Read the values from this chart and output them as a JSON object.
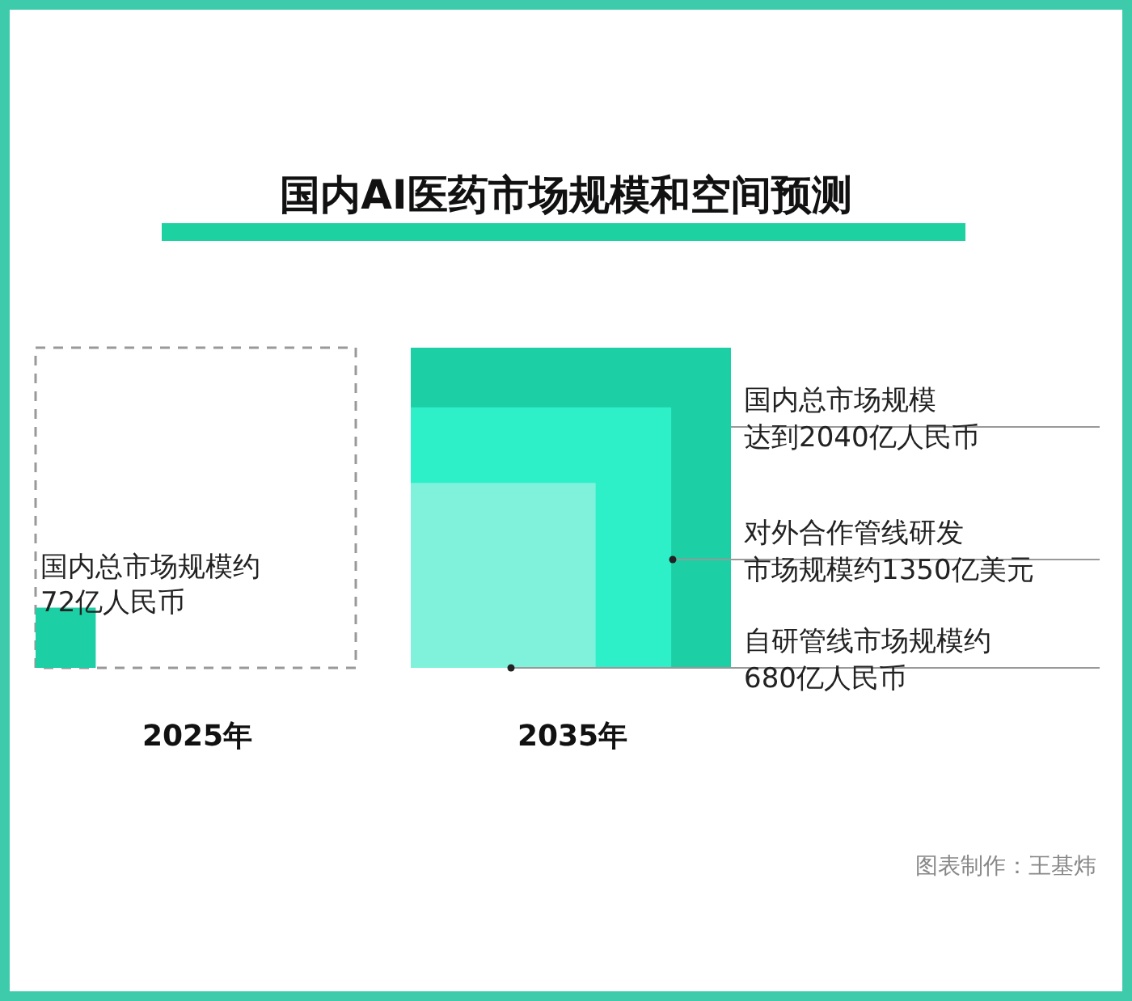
{
  "chart_data": {
    "type": "other",
    "title": "国内AI医药市场规模和空间预测",
    "categories": [
      "2025年",
      "2035年"
    ],
    "series": [
      {
        "color": "#1ccfa5",
        "values": [
          72,
          null
        ],
        "value_labels": [
          "国内总市场规模约72亿人民币",
          null
        ]
      },
      {
        "color": "#1ccfa5",
        "values": [
          null,
          2040
        ],
        "value_labels": [
          null,
          "国内总市场规模达到2040亿人民币"
        ]
      },
      {
        "color": "#2ef0c8",
        "values": [
          null,
          1350
        ],
        "value_labels": [
          null,
          "对外合作管线研发市场规模约1350亿美元"
        ]
      },
      {
        "color": "#80f2dc",
        "values": [
          null,
          680
        ],
        "value_labels": [
          null,
          "自研管线市场规模约680亿人民币"
        ]
      }
    ],
    "annotations": [
      "图表制作：王基炜"
    ]
  }
}
